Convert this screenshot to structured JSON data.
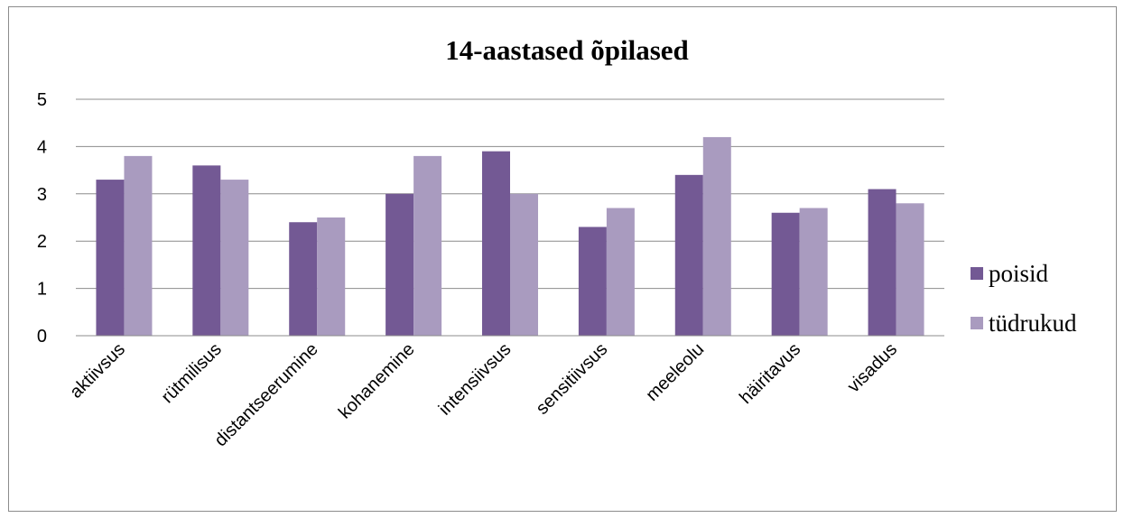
{
  "chart_data": {
    "type": "bar",
    "title": "14-aastased õpilased",
    "xlabel": "",
    "ylabel": "",
    "ylim": [
      0,
      5
    ],
    "yticks": [
      "0",
      "1",
      "2",
      "3",
      "4",
      "5"
    ],
    "grid": true,
    "legend_position": "right",
    "categories": [
      "aktiivsus",
      "rütmilisus",
      "distantseerumine",
      "kohanemine",
      "intensiivsus",
      "sensitiivsus",
      "meeleolu",
      "häiritavus",
      "visadus"
    ],
    "series": [
      {
        "name": "poisid",
        "color": "#735994",
        "values": [
          3.3,
          3.6,
          2.4,
          3.0,
          3.9,
          2.3,
          3.4,
          2.6,
          3.1
        ]
      },
      {
        "name": "tüdrukud",
        "color": "#a99bbf",
        "values": [
          3.8,
          3.3,
          2.5,
          3.8,
          3.0,
          2.7,
          4.2,
          2.7,
          2.8
        ]
      }
    ]
  }
}
